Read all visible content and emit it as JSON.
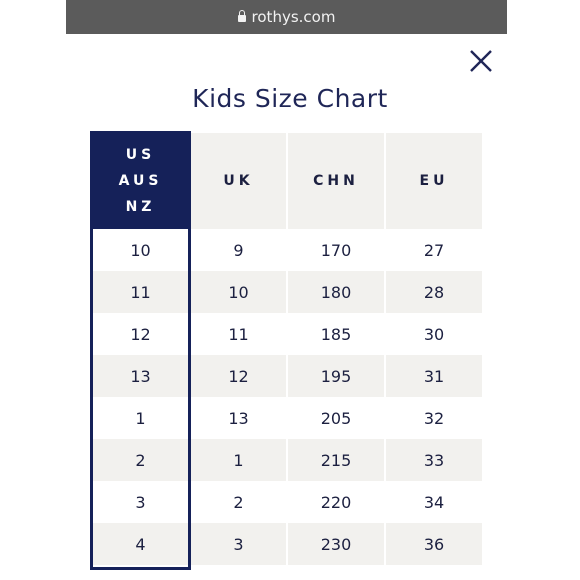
{
  "browser": {
    "url": "rothys.com"
  },
  "modal": {
    "title": "Kids Size Chart",
    "close_icon": "close-icon"
  },
  "table": {
    "headers": [
      [
        "US",
        "AUS",
        "NZ"
      ],
      [
        "UK"
      ],
      [
        "CHN"
      ],
      [
        "EU"
      ]
    ],
    "rows": [
      [
        "10",
        "9",
        "170",
        "27"
      ],
      [
        "11",
        "10",
        "180",
        "28"
      ],
      [
        "12",
        "11",
        "185",
        "30"
      ],
      [
        "13",
        "12",
        "195",
        "31"
      ],
      [
        "1",
        "13",
        "205",
        "32"
      ],
      [
        "2",
        "1",
        "215",
        "33"
      ],
      [
        "3",
        "2",
        "220",
        "34"
      ],
      [
        "4",
        "3",
        "230",
        "36"
      ]
    ]
  },
  "colors": {
    "navy": "#152159",
    "title": "#1f2657",
    "shade": "#f2f1ee",
    "urlbar": "#5b5b5b"
  }
}
